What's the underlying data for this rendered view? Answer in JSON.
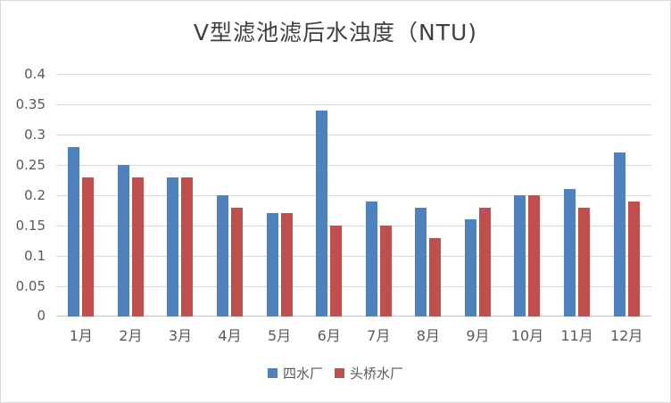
{
  "chart_data": {
    "type": "bar",
    "title": "V型滤池滤后水浊度（NTU)",
    "categories": [
      "1月",
      "2月",
      "3月",
      "4月",
      "5月",
      "6月",
      "7月",
      "8月",
      "9月",
      "10月",
      "11月",
      "12月"
    ],
    "series": [
      {
        "name": "四水厂",
        "color": "#4F81BD",
        "values": [
          0.28,
          0.25,
          0.23,
          0.2,
          0.17,
          0.34,
          0.19,
          0.18,
          0.16,
          0.2,
          0.21,
          0.27
        ]
      },
      {
        "name": "头桥水厂",
        "color": "#C0504D",
        "values": [
          0.23,
          0.23,
          0.23,
          0.18,
          0.17,
          0.15,
          0.15,
          0.13,
          0.18,
          0.2,
          0.18,
          0.19
        ]
      }
    ],
    "ylim": [
      0,
      0.4
    ],
    "ytick_labels": [
      "0",
      "0.05",
      "0.1",
      "0.15",
      "0.2",
      "0.25",
      "0.3",
      "0.35",
      "0.4"
    ],
    "grid": true,
    "legend_position": "bottom"
  },
  "colors": {
    "gridline": "#d9d9d9",
    "axis_line": "#c6c6c6",
    "tick_text": "#595959",
    "title_text": "#404040",
    "background": "#ffffff",
    "border": "#d9d9d9"
  }
}
